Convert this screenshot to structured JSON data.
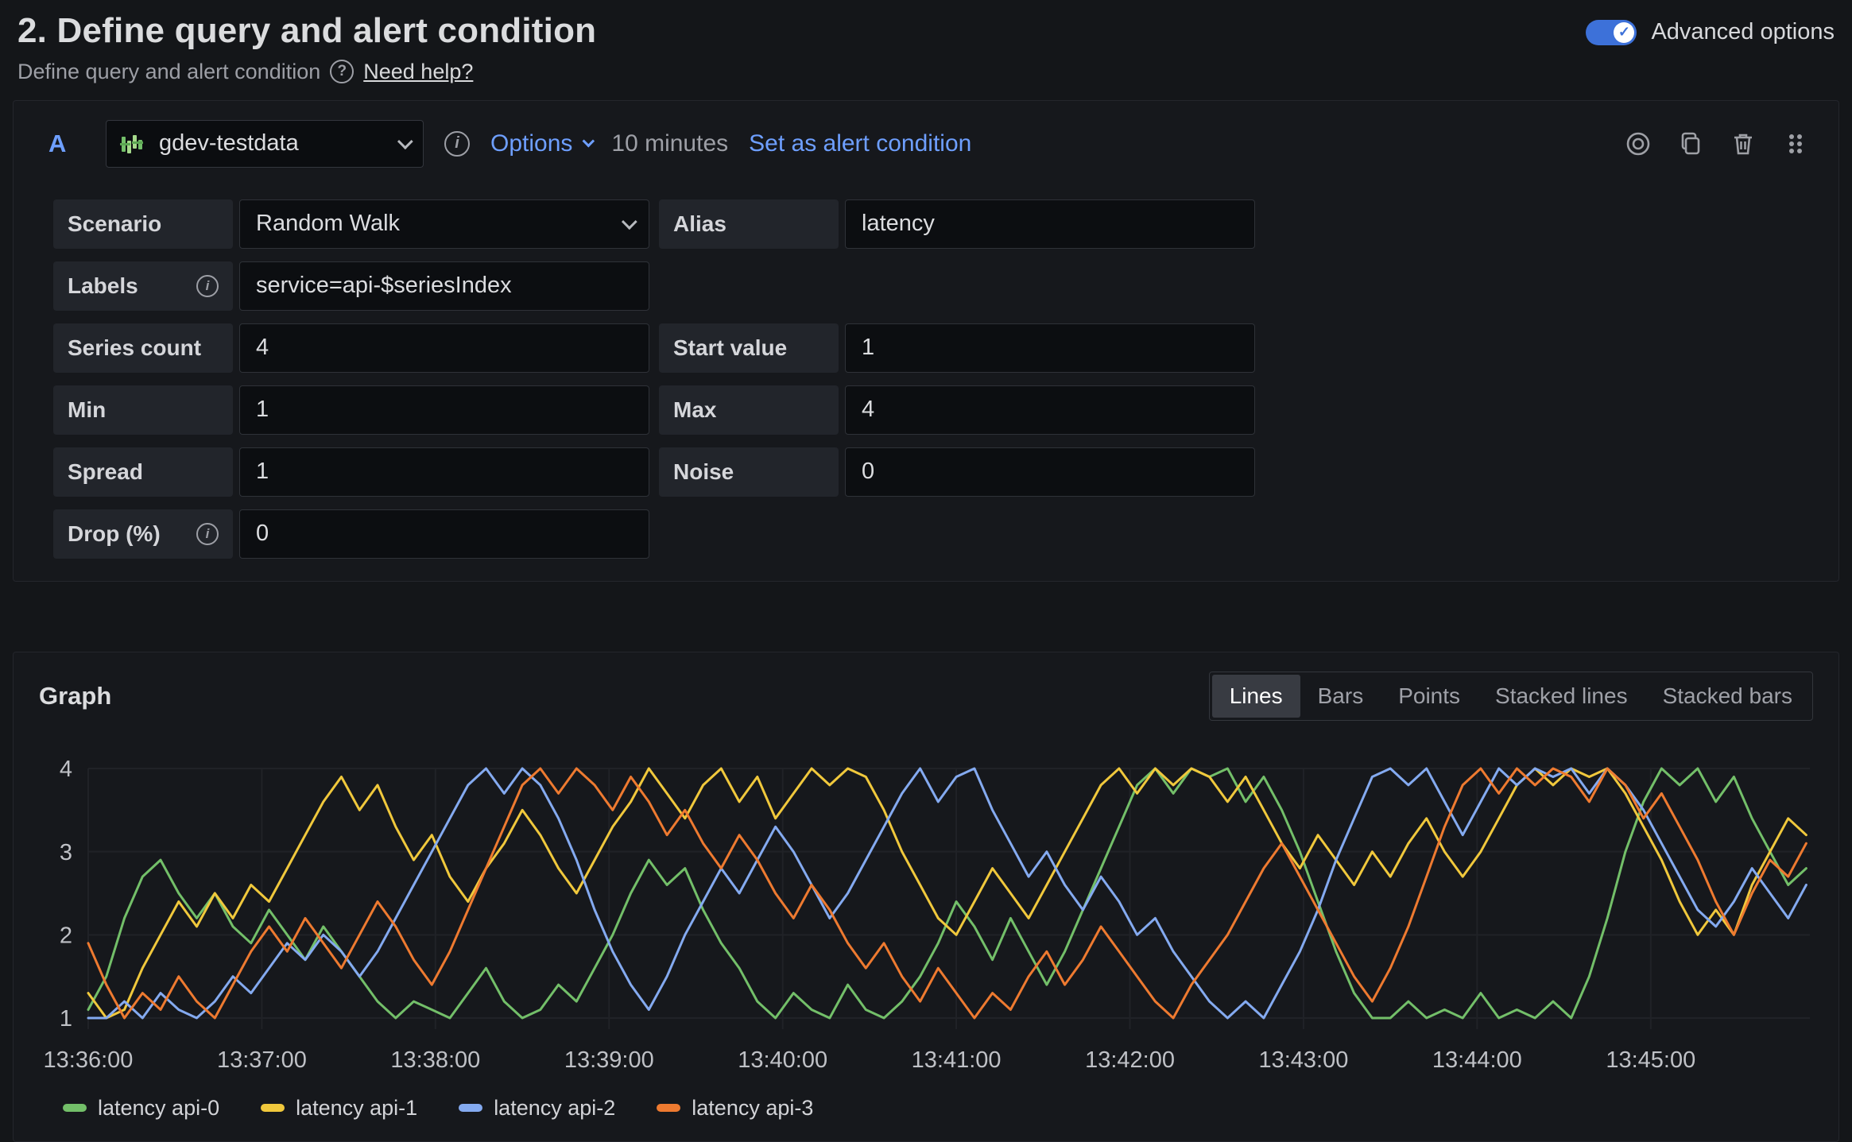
{
  "header": {
    "title": "2. Define query and alert condition",
    "subtitle": "Define query and alert condition",
    "help_glyph": "?",
    "help_link": "Need help?",
    "advanced_toggle_label": "Advanced options",
    "advanced_toggle_on": true,
    "toggle_check_glyph": "✓",
    "toggle_color": "#3D71D9"
  },
  "query": {
    "ref_id": "A",
    "datasource": "gdev-testdata",
    "info_glyph": "i",
    "options_label": "Options",
    "time_range": "10 minutes",
    "set_alert_label": "Set as alert condition",
    "link_color": "#6E9FFF",
    "rows": [
      {
        "left": {
          "label": "Scenario",
          "type": "select",
          "value": "Random Walk"
        },
        "right": {
          "label": "Alias",
          "type": "input",
          "value": "latency"
        }
      },
      {
        "left": {
          "label": "Labels",
          "info": true,
          "type": "input",
          "value": "service=api-$seriesIndex"
        }
      },
      {
        "left": {
          "label": "Series count",
          "type": "input",
          "value": "4"
        },
        "right": {
          "label": "Start value",
          "type": "input",
          "value": "1"
        }
      },
      {
        "left": {
          "label": "Min",
          "type": "input",
          "value": "1"
        },
        "right": {
          "label": "Max",
          "type": "input",
          "value": "4"
        }
      },
      {
        "left": {
          "label": "Spread",
          "type": "input",
          "value": "1"
        },
        "right": {
          "label": "Noise",
          "type": "input",
          "value": "0"
        }
      },
      {
        "left": {
          "label": "Drop (%)",
          "info": true,
          "type": "input",
          "value": "0"
        }
      }
    ]
  },
  "graph": {
    "title": "Graph",
    "modes": [
      "Lines",
      "Bars",
      "Points",
      "Stacked lines",
      "Stacked bars"
    ],
    "active_mode": "Lines"
  },
  "chart_data": {
    "type": "line",
    "title": "",
    "xlabel": "",
    "ylabel": "",
    "ylim": [
      1,
      4
    ],
    "y_ticks": [
      1,
      2,
      3,
      4
    ],
    "x_range_s": 595,
    "point_interval_s": 6.25,
    "grid": true,
    "legend_position": "bottom",
    "axis_text_color": "#BFC1C6",
    "grid_color": "#202227",
    "x_ticks": [
      {
        "t_s": 0,
        "label": "13:36:00"
      },
      {
        "t_s": 60,
        "label": "13:37:00"
      },
      {
        "t_s": 120,
        "label": "13:38:00"
      },
      {
        "t_s": 180,
        "label": "13:39:00"
      },
      {
        "t_s": 240,
        "label": "13:40:00"
      },
      {
        "t_s": 300,
        "label": "13:41:00"
      },
      {
        "t_s": 360,
        "label": "13:42:00"
      },
      {
        "t_s": 420,
        "label": "13:43:00"
      },
      {
        "t_s": 480,
        "label": "13:44:00"
      },
      {
        "t_s": 540,
        "label": "13:45:00"
      }
    ],
    "series": [
      {
        "name": "latency api-0",
        "color": "#73BF69",
        "values": [
          1.1,
          1.5,
          2.2,
          2.7,
          2.9,
          2.5,
          2.2,
          2.5,
          2.1,
          1.9,
          2.3,
          2.0,
          1.7,
          2.1,
          1.8,
          1.5,
          1.2,
          1.0,
          1.2,
          1.1,
          1.0,
          1.3,
          1.6,
          1.2,
          1.0,
          1.1,
          1.4,
          1.2,
          1.6,
          2.0,
          2.5,
          2.9,
          2.6,
          2.8,
          2.3,
          1.9,
          1.6,
          1.2,
          1.0,
          1.3,
          1.1,
          1.0,
          1.4,
          1.1,
          1.0,
          1.2,
          1.5,
          1.9,
          2.4,
          2.1,
          1.7,
          2.2,
          1.8,
          1.4,
          1.8,
          2.3,
          2.8,
          3.3,
          3.8,
          4.0,
          3.7,
          4.0,
          3.9,
          4.0,
          3.6,
          3.9,
          3.5,
          3.0,
          2.4,
          1.8,
          1.3,
          1.0,
          1.0,
          1.2,
          1.0,
          1.1,
          1.0,
          1.3,
          1.0,
          1.1,
          1.0,
          1.2,
          1.0,
          1.5,
          2.2,
          3.0,
          3.6,
          4.0,
          3.8,
          4.0,
          3.6,
          3.9,
          3.4,
          3.0,
          2.6,
          2.8
        ]
      },
      {
        "name": "latency api-1",
        "color": "#F0C83C",
        "values": [
          1.3,
          1.0,
          1.1,
          1.6,
          2.0,
          2.4,
          2.1,
          2.5,
          2.2,
          2.6,
          2.4,
          2.8,
          3.2,
          3.6,
          3.9,
          3.5,
          3.8,
          3.3,
          2.9,
          3.2,
          2.7,
          2.4,
          2.8,
          3.1,
          3.5,
          3.2,
          2.8,
          2.5,
          2.9,
          3.3,
          3.6,
          4.0,
          3.7,
          3.4,
          3.8,
          4.0,
          3.6,
          3.9,
          3.4,
          3.7,
          4.0,
          3.8,
          4.0,
          3.9,
          3.5,
          3.0,
          2.6,
          2.2,
          2.0,
          2.4,
          2.8,
          2.5,
          2.2,
          2.6,
          3.0,
          3.4,
          3.8,
          4.0,
          3.7,
          4.0,
          3.8,
          4.0,
          3.9,
          3.6,
          3.9,
          3.5,
          3.1,
          2.8,
          3.2,
          2.9,
          2.6,
          3.0,
          2.7,
          3.1,
          3.4,
          3.0,
          2.7,
          3.0,
          3.4,
          3.8,
          4.0,
          3.8,
          4.0,
          3.9,
          4.0,
          3.7,
          3.3,
          2.9,
          2.4,
          2.0,
          2.3,
          2.0,
          2.6,
          3.0,
          3.4,
          3.2
        ]
      },
      {
        "name": "latency api-2",
        "color": "#84AAF0",
        "values": [
          1.0,
          1.0,
          1.2,
          1.0,
          1.3,
          1.1,
          1.0,
          1.2,
          1.5,
          1.3,
          1.6,
          1.9,
          1.7,
          2.0,
          1.8,
          1.5,
          1.8,
          2.2,
          2.6,
          3.0,
          3.4,
          3.8,
          4.0,
          3.7,
          4.0,
          3.8,
          3.4,
          2.9,
          2.3,
          1.8,
          1.4,
          1.1,
          1.5,
          2.0,
          2.4,
          2.8,
          2.5,
          2.9,
          3.3,
          3.0,
          2.6,
          2.2,
          2.5,
          2.9,
          3.3,
          3.7,
          4.0,
          3.6,
          3.9,
          4.0,
          3.5,
          3.1,
          2.7,
          3.0,
          2.6,
          2.3,
          2.7,
          2.4,
          2.0,
          2.2,
          1.8,
          1.5,
          1.2,
          1.0,
          1.2,
          1.0,
          1.4,
          1.8,
          2.3,
          2.9,
          3.4,
          3.9,
          4.0,
          3.8,
          4.0,
          3.6,
          3.2,
          3.6,
          4.0,
          3.8,
          4.0,
          3.9,
          4.0,
          3.7,
          4.0,
          3.8,
          3.5,
          3.1,
          2.7,
          2.3,
          2.1,
          2.4,
          2.8,
          2.5,
          2.2,
          2.6
        ]
      },
      {
        "name": "latency api-3",
        "color": "#EE7A30",
        "values": [
          1.9,
          1.4,
          1.0,
          1.3,
          1.1,
          1.5,
          1.2,
          1.0,
          1.4,
          1.8,
          2.1,
          1.8,
          2.2,
          1.9,
          1.6,
          2.0,
          2.4,
          2.1,
          1.7,
          1.4,
          1.8,
          2.3,
          2.8,
          3.3,
          3.8,
          4.0,
          3.7,
          4.0,
          3.8,
          3.5,
          3.9,
          3.6,
          3.2,
          3.5,
          3.1,
          2.8,
          3.2,
          2.9,
          2.5,
          2.2,
          2.6,
          2.3,
          1.9,
          1.6,
          1.9,
          1.5,
          1.2,
          1.6,
          1.3,
          1.0,
          1.3,
          1.1,
          1.5,
          1.8,
          1.4,
          1.7,
          2.1,
          1.8,
          1.5,
          1.2,
          1.0,
          1.4,
          1.7,
          2.0,
          2.4,
          2.8,
          3.1,
          2.7,
          2.3,
          1.9,
          1.5,
          1.2,
          1.6,
          2.1,
          2.7,
          3.3,
          3.8,
          4.0,
          3.7,
          4.0,
          3.8,
          4.0,
          3.9,
          3.6,
          4.0,
          3.8,
          3.4,
          3.7,
          3.3,
          2.9,
          2.4,
          2.0,
          2.5,
          2.9,
          2.7,
          3.1
        ]
      }
    ]
  }
}
